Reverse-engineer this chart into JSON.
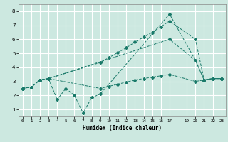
{
  "xlabel": "Humidex (Indice chaleur)",
  "bg_color": "#cce8e0",
  "line_color": "#1a7a6a",
  "grid_color": "#ffffff",
  "xlim": [
    -0.5,
    23.5
  ],
  "ylim": [
    0.5,
    8.5
  ],
  "yticks": [
    1,
    2,
    3,
    4,
    5,
    6,
    7,
    8
  ],
  "xtick_labels": [
    "0",
    "1",
    "2",
    "3",
    "4",
    "5",
    "6",
    "7",
    "8",
    "9",
    "10",
    "11",
    "12",
    "13",
    "14",
    "15",
    "16",
    "17",
    "19",
    "20",
    "21",
    "22",
    "23"
  ],
  "xtick_pos": [
    0,
    1,
    2,
    3,
    4,
    5,
    6,
    7,
    8,
    9,
    10,
    11,
    12,
    13,
    14,
    15,
    16,
    17,
    19,
    20,
    21,
    22,
    23
  ],
  "s1_x": [
    0,
    1,
    2,
    3,
    4,
    5,
    6,
    7,
    8,
    9,
    17,
    20,
    21,
    22,
    23
  ],
  "s1_y": [
    2.5,
    2.6,
    3.1,
    3.2,
    1.7,
    2.5,
    2.0,
    0.75,
    1.85,
    2.1,
    7.8,
    4.5,
    3.1,
    3.2,
    3.2
  ],
  "s2_x": [
    0,
    1,
    2,
    3,
    9,
    10,
    11,
    12,
    13,
    14,
    15,
    16,
    17,
    20,
    21,
    22,
    23
  ],
  "s2_y": [
    2.5,
    2.6,
    3.1,
    3.2,
    4.35,
    4.7,
    5.05,
    5.4,
    5.8,
    6.15,
    6.5,
    6.9,
    7.3,
    6.0,
    3.1,
    3.2,
    3.2
  ],
  "s3_x": [
    0,
    1,
    2,
    3,
    17,
    20,
    21,
    22,
    23
  ],
  "s3_y": [
    2.5,
    2.6,
    3.1,
    3.2,
    6.0,
    4.5,
    3.1,
    3.2,
    3.2
  ],
  "s4_x": [
    0,
    1,
    2,
    3,
    9,
    10,
    11,
    12,
    13,
    14,
    15,
    16,
    17,
    20,
    21,
    22,
    23
  ],
  "s4_y": [
    2.5,
    2.6,
    3.1,
    3.2,
    2.5,
    2.65,
    2.8,
    2.95,
    3.1,
    3.2,
    3.3,
    3.4,
    3.5,
    3.0,
    3.1,
    3.2,
    3.2
  ]
}
